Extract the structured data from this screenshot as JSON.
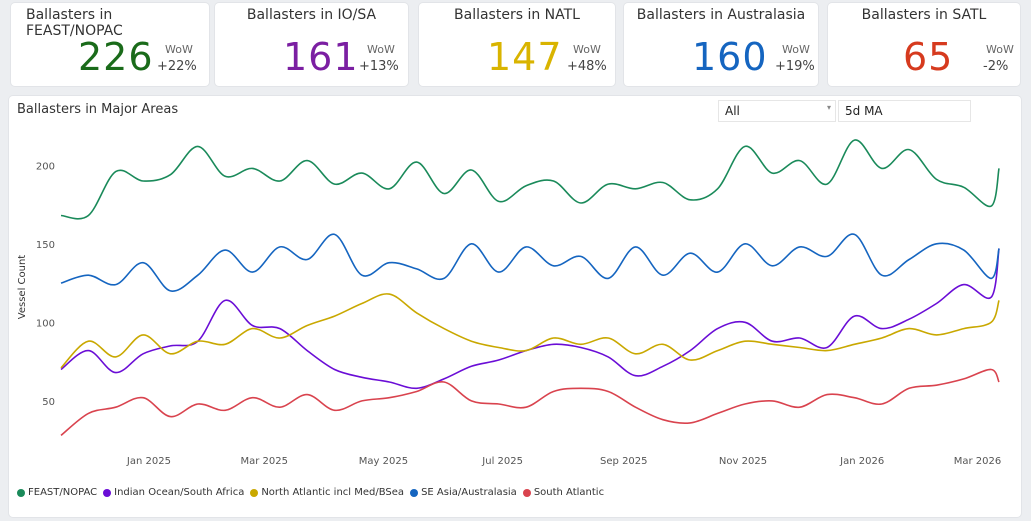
{
  "cards": [
    {
      "title": "Ballasters in FEAST/NOPAC",
      "value": "226",
      "wow_label": "WoW",
      "wow": "+22%",
      "color": "#1a6b1a"
    },
    {
      "title": "Ballasters in IO/SA",
      "value": "161",
      "wow_label": "WoW",
      "wow": "+13%",
      "color": "#7b1fa2"
    },
    {
      "title": "Ballasters in NATL",
      "value": "147",
      "wow_label": "WoW",
      "wow": "+48%",
      "color": "#d9b400"
    },
    {
      "title": "Ballasters in Australasia",
      "value": "160",
      "wow_label": "WoW",
      "wow": "+19%",
      "color": "#1565c0"
    },
    {
      "title": "Ballasters in SATL",
      "value": "65",
      "wow_label": "WoW",
      "wow": "-2%",
      "color": "#d63a1e"
    }
  ],
  "panel": {
    "title": "Ballasters in Major Areas",
    "filter_value": "All",
    "ma_value": "5d MA"
  },
  "chart_data": {
    "type": "line",
    "title": "Ballasters in Major Areas",
    "xlabel": "",
    "ylabel": "Vessel Count",
    "ylim": [
      20,
      225
    ],
    "yticks": [
      50,
      100,
      150,
      200
    ],
    "x_range": [
      "2024-11-17",
      "2026-03-12"
    ],
    "xticks": [
      {
        "date": "2025-01-01",
        "label": "Jan 2025"
      },
      {
        "date": "2025-03-01",
        "label": "Mar 2025"
      },
      {
        "date": "2025-05-01",
        "label": "May 2025"
      },
      {
        "date": "2025-07-01",
        "label": "Jul 2025"
      },
      {
        "date": "2025-09-01",
        "label": "Sep 2025"
      },
      {
        "date": "2025-11-01",
        "label": "Nov 2025"
      },
      {
        "date": "2026-01-01",
        "label": "Jan 2026"
      },
      {
        "date": "2026-03-01",
        "label": "Mar 2026"
      }
    ],
    "x": [
      "2024-11-17",
      "2024-12-01",
      "2024-12-15",
      "2024-12-29",
      "2025-01-12",
      "2025-01-26",
      "2025-02-09",
      "2025-02-23",
      "2025-03-09",
      "2025-03-23",
      "2025-04-06",
      "2025-04-20",
      "2025-05-04",
      "2025-05-18",
      "2025-06-01",
      "2025-06-15",
      "2025-06-29",
      "2025-07-13",
      "2025-07-27",
      "2025-08-10",
      "2025-08-24",
      "2025-09-07",
      "2025-09-21",
      "2025-10-05",
      "2025-10-19",
      "2025-11-02",
      "2025-11-16",
      "2025-11-30",
      "2025-12-14",
      "2025-12-28",
      "2026-01-11",
      "2026-01-25",
      "2026-02-08",
      "2026-02-22",
      "2026-03-08",
      "2026-03-12"
    ],
    "series": [
      {
        "name": "FEAST/NOPAC",
        "color": "#1a8a5a",
        "values": [
          168,
          168,
          196,
          190,
          194,
          212,
          193,
          198,
          190,
          203,
          188,
          195,
          185,
          202,
          182,
          197,
          177,
          187,
          190,
          176,
          188,
          185,
          189,
          178,
          185,
          212,
          195,
          203,
          188,
          216,
          198,
          210,
          191,
          186,
          174,
          198
        ]
      },
      {
        "name": "Indian Ocean/South Africa",
        "color": "#6a0dd6",
        "values": [
          70,
          82,
          68,
          80,
          85,
          88,
          114,
          98,
          96,
          82,
          70,
          65,
          62,
          58,
          64,
          72,
          76,
          82,
          86,
          84,
          78,
          66,
          72,
          82,
          96,
          100,
          88,
          90,
          84,
          104,
          96,
          102,
          112,
          124,
          116,
          147
        ]
      },
      {
        "name": "North Atlantic incl Med/BSea",
        "color": "#c9a800",
        "values": [
          71,
          88,
          78,
          92,
          80,
          88,
          86,
          96,
          90,
          98,
          104,
          112,
          118,
          106,
          96,
          88,
          84,
          82,
          90,
          86,
          90,
          80,
          86,
          76,
          82,
          88,
          86,
          84,
          82,
          86,
          90,
          96,
          92,
          96,
          100,
          114
        ]
      },
      {
        "name": "SE Asia/Australasia",
        "color": "#1565c0",
        "values": [
          125,
          130,
          124,
          138,
          120,
          130,
          146,
          132,
          148,
          140,
          156,
          130,
          138,
          134,
          128,
          150,
          132,
          148,
          136,
          142,
          128,
          148,
          130,
          144,
          132,
          150,
          136,
          148,
          142,
          156,
          130,
          140,
          150,
          146,
          128,
          147
        ]
      },
      {
        "name": "South Atlantic",
        "color": "#d9434e",
        "values": [
          28,
          42,
          46,
          52,
          40,
          48,
          44,
          52,
          46,
          54,
          44,
          50,
          52,
          56,
          62,
          50,
          48,
          46,
          56,
          58,
          56,
          46,
          38,
          36,
          42,
          48,
          50,
          46,
          54,
          52,
          48,
          58,
          60,
          64,
          70,
          62
        ]
      }
    ]
  }
}
